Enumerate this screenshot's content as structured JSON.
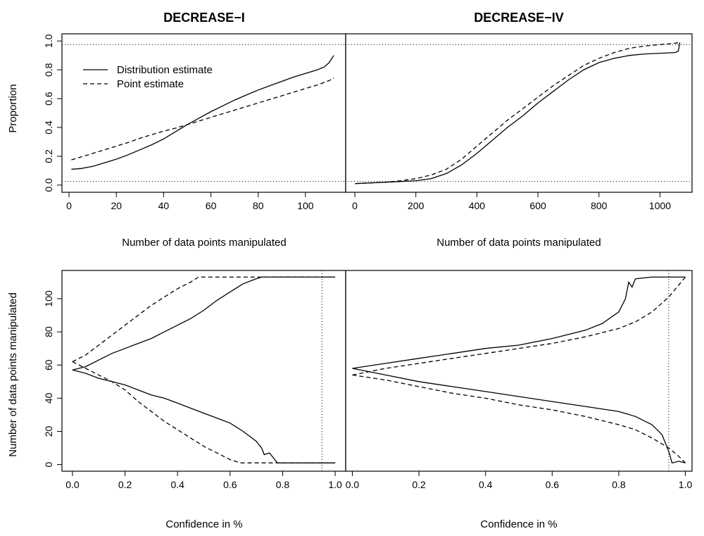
{
  "figure": {
    "legend": [
      {
        "label": "Distribution estimate",
        "style": "solid"
      },
      {
        "label": "Point estimate",
        "style": "dashed"
      }
    ]
  },
  "chart_data": [
    {
      "type": "line",
      "title": "DECREASE−I",
      "xlabel": "Number of data points manipulated",
      "ylabel": "Proportion",
      "xlim": [
        -3,
        117
      ],
      "ylim": [
        -0.05,
        1.05
      ],
      "xticks": [
        0,
        20,
        40,
        60,
        80,
        100
      ],
      "xtick_labels": [
        "0",
        "20",
        "40",
        "60",
        "80",
        "100"
      ],
      "yticks": [
        0.0,
        0.2,
        0.4,
        0.6,
        0.8,
        1.0
      ],
      "ytick_labels": [
        "0.0",
        "0.2",
        "0.4",
        "0.6",
        "0.8",
        "1.0"
      ],
      "hlines": [
        0.025,
        0.975
      ],
      "legend_position": "top-left",
      "series": [
        {
          "name": "Distribution estimate",
          "style": "solid",
          "x": [
            1,
            5,
            10,
            15,
            20,
            25,
            30,
            35,
            40,
            45,
            50,
            55,
            60,
            65,
            70,
            75,
            80,
            85,
            90,
            95,
            100,
            105,
            108,
            110,
            112
          ],
          "y": [
            0.11,
            0.115,
            0.13,
            0.155,
            0.18,
            0.21,
            0.245,
            0.28,
            0.32,
            0.37,
            0.42,
            0.465,
            0.51,
            0.55,
            0.59,
            0.625,
            0.66,
            0.69,
            0.72,
            0.75,
            0.775,
            0.8,
            0.82,
            0.85,
            0.9
          ]
        },
        {
          "name": "Point estimate",
          "style": "dashed",
          "x": [
            1,
            5,
            10,
            15,
            20,
            25,
            30,
            35,
            40,
            45,
            50,
            55,
            60,
            65,
            70,
            75,
            80,
            85,
            90,
            95,
            100,
            105,
            110,
            112
          ],
          "y": [
            0.175,
            0.195,
            0.22,
            0.245,
            0.27,
            0.295,
            0.325,
            0.35,
            0.375,
            0.395,
            0.42,
            0.445,
            0.47,
            0.495,
            0.52,
            0.545,
            0.57,
            0.595,
            0.62,
            0.645,
            0.67,
            0.695,
            0.725,
            0.745
          ]
        }
      ]
    },
    {
      "type": "line",
      "title": "DECREASE−IV",
      "xlabel": "Number of data points manipulated",
      "ylabel": "",
      "xlim": [
        -30,
        1105
      ],
      "ylim": [
        -0.05,
        1.05
      ],
      "xticks": [
        0,
        200,
        400,
        600,
        800,
        1000
      ],
      "xtick_labels": [
        "0",
        "200",
        "400",
        "600",
        "800",
        "1000"
      ],
      "yticks": [],
      "ytick_labels": [],
      "hlines": [
        0.025,
        0.975
      ],
      "series": [
        {
          "name": "Distribution estimate",
          "style": "solid",
          "x": [
            1,
            50,
            100,
            150,
            200,
            250,
            300,
            350,
            400,
            450,
            500,
            550,
            600,
            650,
            700,
            750,
            800,
            850,
            900,
            950,
            1000,
            1050,
            1060,
            1065
          ],
          "y": [
            0.01,
            0.015,
            0.02,
            0.025,
            0.03,
            0.045,
            0.08,
            0.14,
            0.22,
            0.31,
            0.4,
            0.48,
            0.57,
            0.65,
            0.73,
            0.8,
            0.85,
            0.88,
            0.9,
            0.91,
            0.915,
            0.92,
            0.93,
            0.99
          ]
        },
        {
          "name": "Point estimate",
          "style": "dashed",
          "x": [
            1,
            50,
            100,
            150,
            200,
            250,
            300,
            350,
            400,
            450,
            500,
            550,
            600,
            650,
            700,
            750,
            800,
            850,
            900,
            950,
            1000,
            1050,
            1065
          ],
          "y": [
            0.01,
            0.015,
            0.02,
            0.03,
            0.045,
            0.07,
            0.11,
            0.18,
            0.27,
            0.36,
            0.45,
            0.53,
            0.61,
            0.69,
            0.76,
            0.83,
            0.88,
            0.92,
            0.95,
            0.965,
            0.975,
            0.985,
            0.99
          ]
        }
      ]
    },
    {
      "type": "line",
      "title": "",
      "xlabel": "Confidence in %",
      "ylabel": "Number of data points manipulated",
      "xlim": [
        -0.04,
        1.04
      ],
      "ylim": [
        -4,
        117
      ],
      "xticks": [
        0.0,
        0.2,
        0.4,
        0.6,
        0.8,
        1.0
      ],
      "xtick_labels": [
        "0.0",
        "0.2",
        "0.4",
        "0.6",
        "0.8",
        "1.0"
      ],
      "yticks": [
        0,
        20,
        40,
        60,
        80,
        100
      ],
      "ytick_labels": [
        "0",
        "20",
        "40",
        "60",
        "80",
        "100"
      ],
      "vlines": [
        0.95
      ],
      "series": [
        {
          "name": "Distribution estimate",
          "style": "solid",
          "x": [
            0.0,
            0.05,
            0.1,
            0.15,
            0.2,
            0.25,
            0.3,
            0.35,
            0.4,
            0.45,
            0.5,
            0.55,
            0.6,
            0.65,
            0.7,
            0.72,
            0.75,
            0.77,
            0.8,
            0.9,
            1.0
          ],
          "y": [
            57,
            59,
            63,
            67,
            70,
            73,
            76,
            80,
            84,
            88,
            93,
            99,
            104,
            109,
            112,
            113,
            113,
            113,
            113,
            113,
            113
          ]
        },
        {
          "name": "Distribution estimate",
          "style": "solid",
          "x": [
            0.0,
            0.05,
            0.1,
            0.15,
            0.2,
            0.25,
            0.3,
            0.35,
            0.4,
            0.45,
            0.5,
            0.55,
            0.6,
            0.65,
            0.7,
            0.72,
            0.73,
            0.75,
            0.78,
            0.8,
            0.9,
            1.0
          ],
          "y": [
            57,
            55,
            52,
            50,
            48,
            45,
            42,
            40,
            37,
            34,
            31,
            28,
            25,
            20,
            14,
            10,
            6,
            7,
            1,
            1,
            1,
            1
          ]
        },
        {
          "name": "Point estimate",
          "style": "dashed",
          "x": [
            0.0,
            0.05,
            0.1,
            0.15,
            0.2,
            0.25,
            0.3,
            0.35,
            0.4,
            0.45,
            0.48,
            0.5,
            0.6,
            0.8,
            1.0
          ],
          "y": [
            62,
            66,
            72,
            78,
            84,
            90,
            96,
            101,
            106,
            110,
            113,
            113,
            113,
            113,
            113
          ]
        },
        {
          "name": "Point estimate",
          "style": "dashed",
          "x": [
            0.0,
            0.05,
            0.1,
            0.15,
            0.2,
            0.25,
            0.3,
            0.35,
            0.4,
            0.45,
            0.5,
            0.55,
            0.6,
            0.64,
            0.7,
            0.8,
            1.0
          ],
          "y": [
            62,
            58,
            54,
            50,
            45,
            38,
            32,
            26,
            21,
            16,
            11,
            7,
            3,
            1,
            1,
            1,
            1
          ]
        }
      ]
    },
    {
      "type": "line",
      "title": "",
      "xlabel": "Confidence in %",
      "ylabel": "",
      "xlim": [
        -0.02,
        1.02
      ],
      "ylim": [
        -4,
        117
      ],
      "xticks": [
        0.0,
        0.2,
        0.4,
        0.6,
        0.8,
        1.0
      ],
      "xtick_labels": [
        "0.0",
        "0.2",
        "0.4",
        "0.6",
        "0.8",
        "1.0"
      ],
      "yticks": [],
      "ytick_labels": [],
      "vlines": [
        0.95
      ],
      "series": [
        {
          "name": "Distribution estimate",
          "style": "solid",
          "x": [
            0.0,
            0.1,
            0.2,
            0.3,
            0.4,
            0.5,
            0.6,
            0.7,
            0.75,
            0.8,
            0.82,
            0.83,
            0.84,
            0.85,
            0.9,
            1.0
          ],
          "y": [
            58,
            61,
            64,
            67,
            70,
            72,
            76,
            81,
            85,
            92,
            100,
            110,
            107,
            112,
            113,
            113
          ]
        },
        {
          "name": "Distribution estimate",
          "style": "solid",
          "x": [
            0.0,
            0.1,
            0.2,
            0.3,
            0.4,
            0.5,
            0.6,
            0.7,
            0.8,
            0.85,
            0.9,
            0.93,
            0.95,
            0.96,
            0.98,
            1.0
          ],
          "y": [
            58,
            54,
            50,
            47,
            44,
            41,
            38,
            35,
            32,
            29,
            24,
            18,
            8,
            1,
            2,
            1
          ]
        },
        {
          "name": "Point estimate",
          "style": "dashed",
          "x": [
            0.0,
            0.1,
            0.2,
            0.3,
            0.4,
            0.5,
            0.6,
            0.7,
            0.8,
            0.85,
            0.9,
            0.95,
            1.0
          ],
          "y": [
            54,
            58,
            61,
            64,
            67,
            70,
            73,
            77,
            82,
            86,
            92,
            101,
            113
          ]
        },
        {
          "name": "Point estimate",
          "style": "dashed",
          "x": [
            0.0,
            0.1,
            0.2,
            0.3,
            0.4,
            0.5,
            0.6,
            0.7,
            0.8,
            0.85,
            0.9,
            0.95,
            0.98,
            1.0
          ],
          "y": [
            54,
            51,
            47,
            43,
            40,
            36,
            33,
            29,
            24,
            21,
            16,
            10,
            5,
            1
          ]
        }
      ]
    }
  ]
}
